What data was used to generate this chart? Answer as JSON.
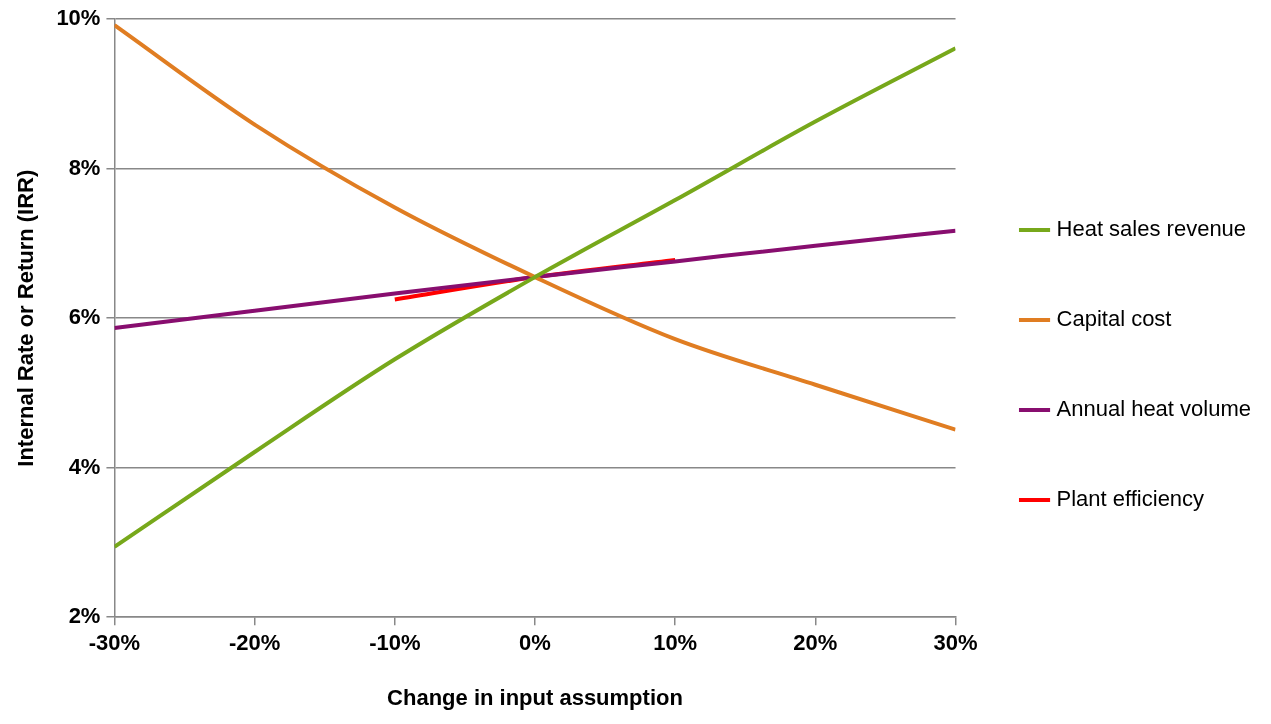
{
  "chart_data": {
    "type": "line",
    "xlabel": "Change in input assumption",
    "ylabel": "Internal Rate or Return (IRR)",
    "xlim": [
      -30,
      30
    ],
    "xticks": [
      {
        "value": -30,
        "label": "-30%"
      },
      {
        "value": -20,
        "label": "-20%"
      },
      {
        "value": -10,
        "label": "-10%"
      },
      {
        "value": 0,
        "label": "0%"
      },
      {
        "value": 10,
        "label": "10%"
      },
      {
        "value": 20,
        "label": "20%"
      },
      {
        "value": 30,
        "label": "30%"
      }
    ],
    "ylim": [
      2,
      10
    ],
    "yticks": [
      {
        "value": 2,
        "label": "2%"
      },
      {
        "value": 4,
        "label": "4%"
      },
      {
        "value": 6,
        "label": "6%"
      },
      {
        "value": 8,
        "label": "8%"
      },
      {
        "value": 10,
        "label": "10%"
      }
    ],
    "grid": "y",
    "legend": "right",
    "marker": "none",
    "line_style": "solid",
    "series": [
      {
        "name": "Heat sales revenue",
        "color": "#77a81b",
        "x": [
          -30,
          -20,
          -10,
          0,
          10,
          20,
          30
        ],
        "values": [
          2.94,
          4.21,
          5.45,
          6.55,
          7.58,
          8.63,
          9.61
        ]
      },
      {
        "name": "Capital cost",
        "color": "#e07d22",
        "x": [
          -30,
          -20,
          -10,
          0,
          10,
          20,
          30
        ],
        "values": [
          9.92,
          8.59,
          7.48,
          6.55,
          5.72,
          5.11,
          4.51
        ]
      },
      {
        "name": "Annual heat volume",
        "color": "#880e6f",
        "x": [
          -30,
          -20,
          -10,
          0,
          10,
          20,
          30
        ],
        "values": [
          5.87,
          6.1,
          6.33,
          6.55,
          6.76,
          6.97,
          7.17
        ]
      },
      {
        "name": "Plant efficiency",
        "color": "#ff0000",
        "x": [
          -10,
          0,
          10
        ],
        "values": [
          6.25,
          6.55,
          6.78
        ]
      }
    ]
  }
}
